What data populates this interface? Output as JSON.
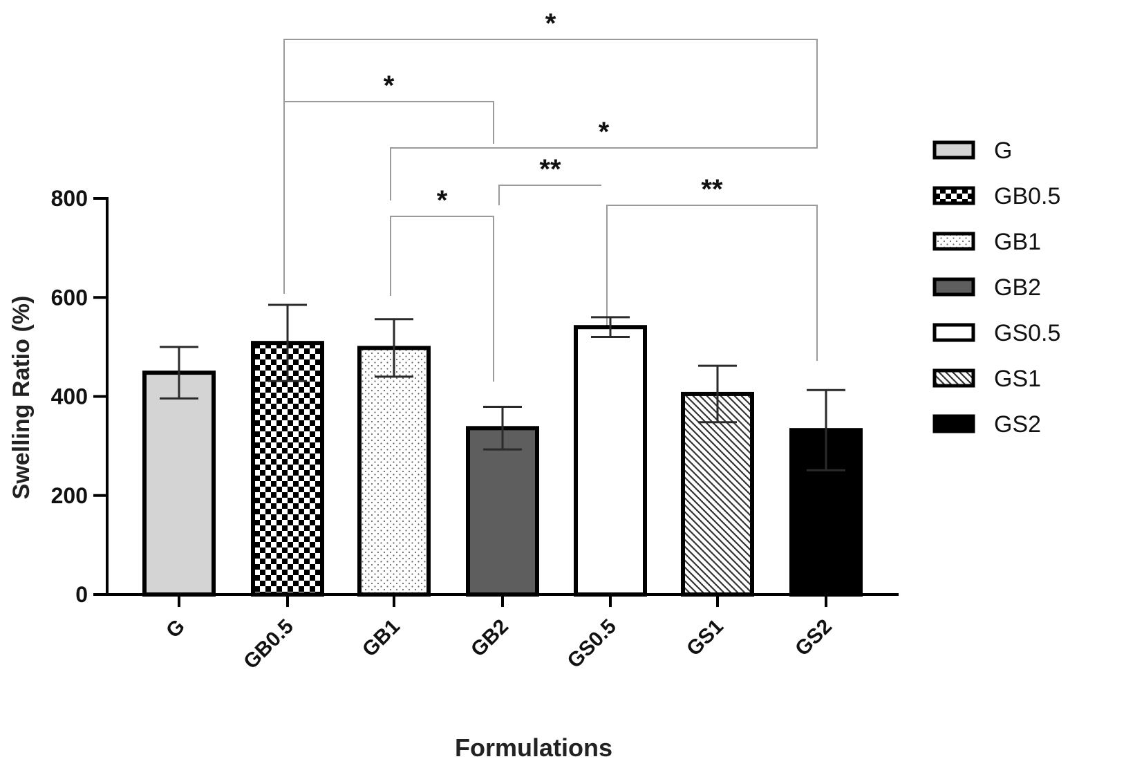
{
  "chart_data": {
    "type": "bar",
    "title": "",
    "xlabel": "Formulations",
    "ylabel": "Swelling Ratio  (%)",
    "ylim": [
      0,
      800
    ],
    "yticks": [
      0,
      200,
      400,
      600,
      800
    ],
    "categories": [
      "G",
      "GB0.5",
      "GB1",
      "GB2",
      "GS0.5",
      "GS1",
      "GS2"
    ],
    "values": [
      448,
      508,
      498,
      336,
      540,
      405,
      332
    ],
    "errors": [
      52,
      77,
      58,
      43,
      20,
      57,
      81
    ],
    "fills": [
      {
        "key": "G",
        "pattern": "solid",
        "color": "#d4d4d4"
      },
      {
        "key": "GB0.5",
        "pattern": "checker",
        "color": "#000000"
      },
      {
        "key": "GB1",
        "pattern": "dots",
        "color": "#666666"
      },
      {
        "key": "GB2",
        "pattern": "solid",
        "color": "#5e5e5e"
      },
      {
        "key": "GS0.5",
        "pattern": "solid",
        "color": "#ffffff"
      },
      {
        "key": "GS1",
        "pattern": "diagonal",
        "color": "#333333"
      },
      {
        "key": "GS2",
        "pattern": "solid",
        "color": "#000000"
      }
    ],
    "legend": {
      "position": "right",
      "entries": [
        "G",
        "GB0.5",
        "GB1",
        "GB2",
        "GS0.5",
        "GS1",
        "GS2"
      ]
    },
    "significance": [
      {
        "from": "GB0.5",
        "to": "GS2",
        "label": "*"
      },
      {
        "from": "GB0.5",
        "to": "GB2",
        "label": "*"
      },
      {
        "from": "GB1",
        "to": "GS2",
        "label": "*"
      },
      {
        "from": "GB2",
        "to": "GS0.5",
        "label": "**"
      },
      {
        "from": "GS0.5",
        "to": "GS2",
        "label": "**"
      },
      {
        "from": "GB1",
        "to": "GB2",
        "label": "*"
      }
    ]
  }
}
